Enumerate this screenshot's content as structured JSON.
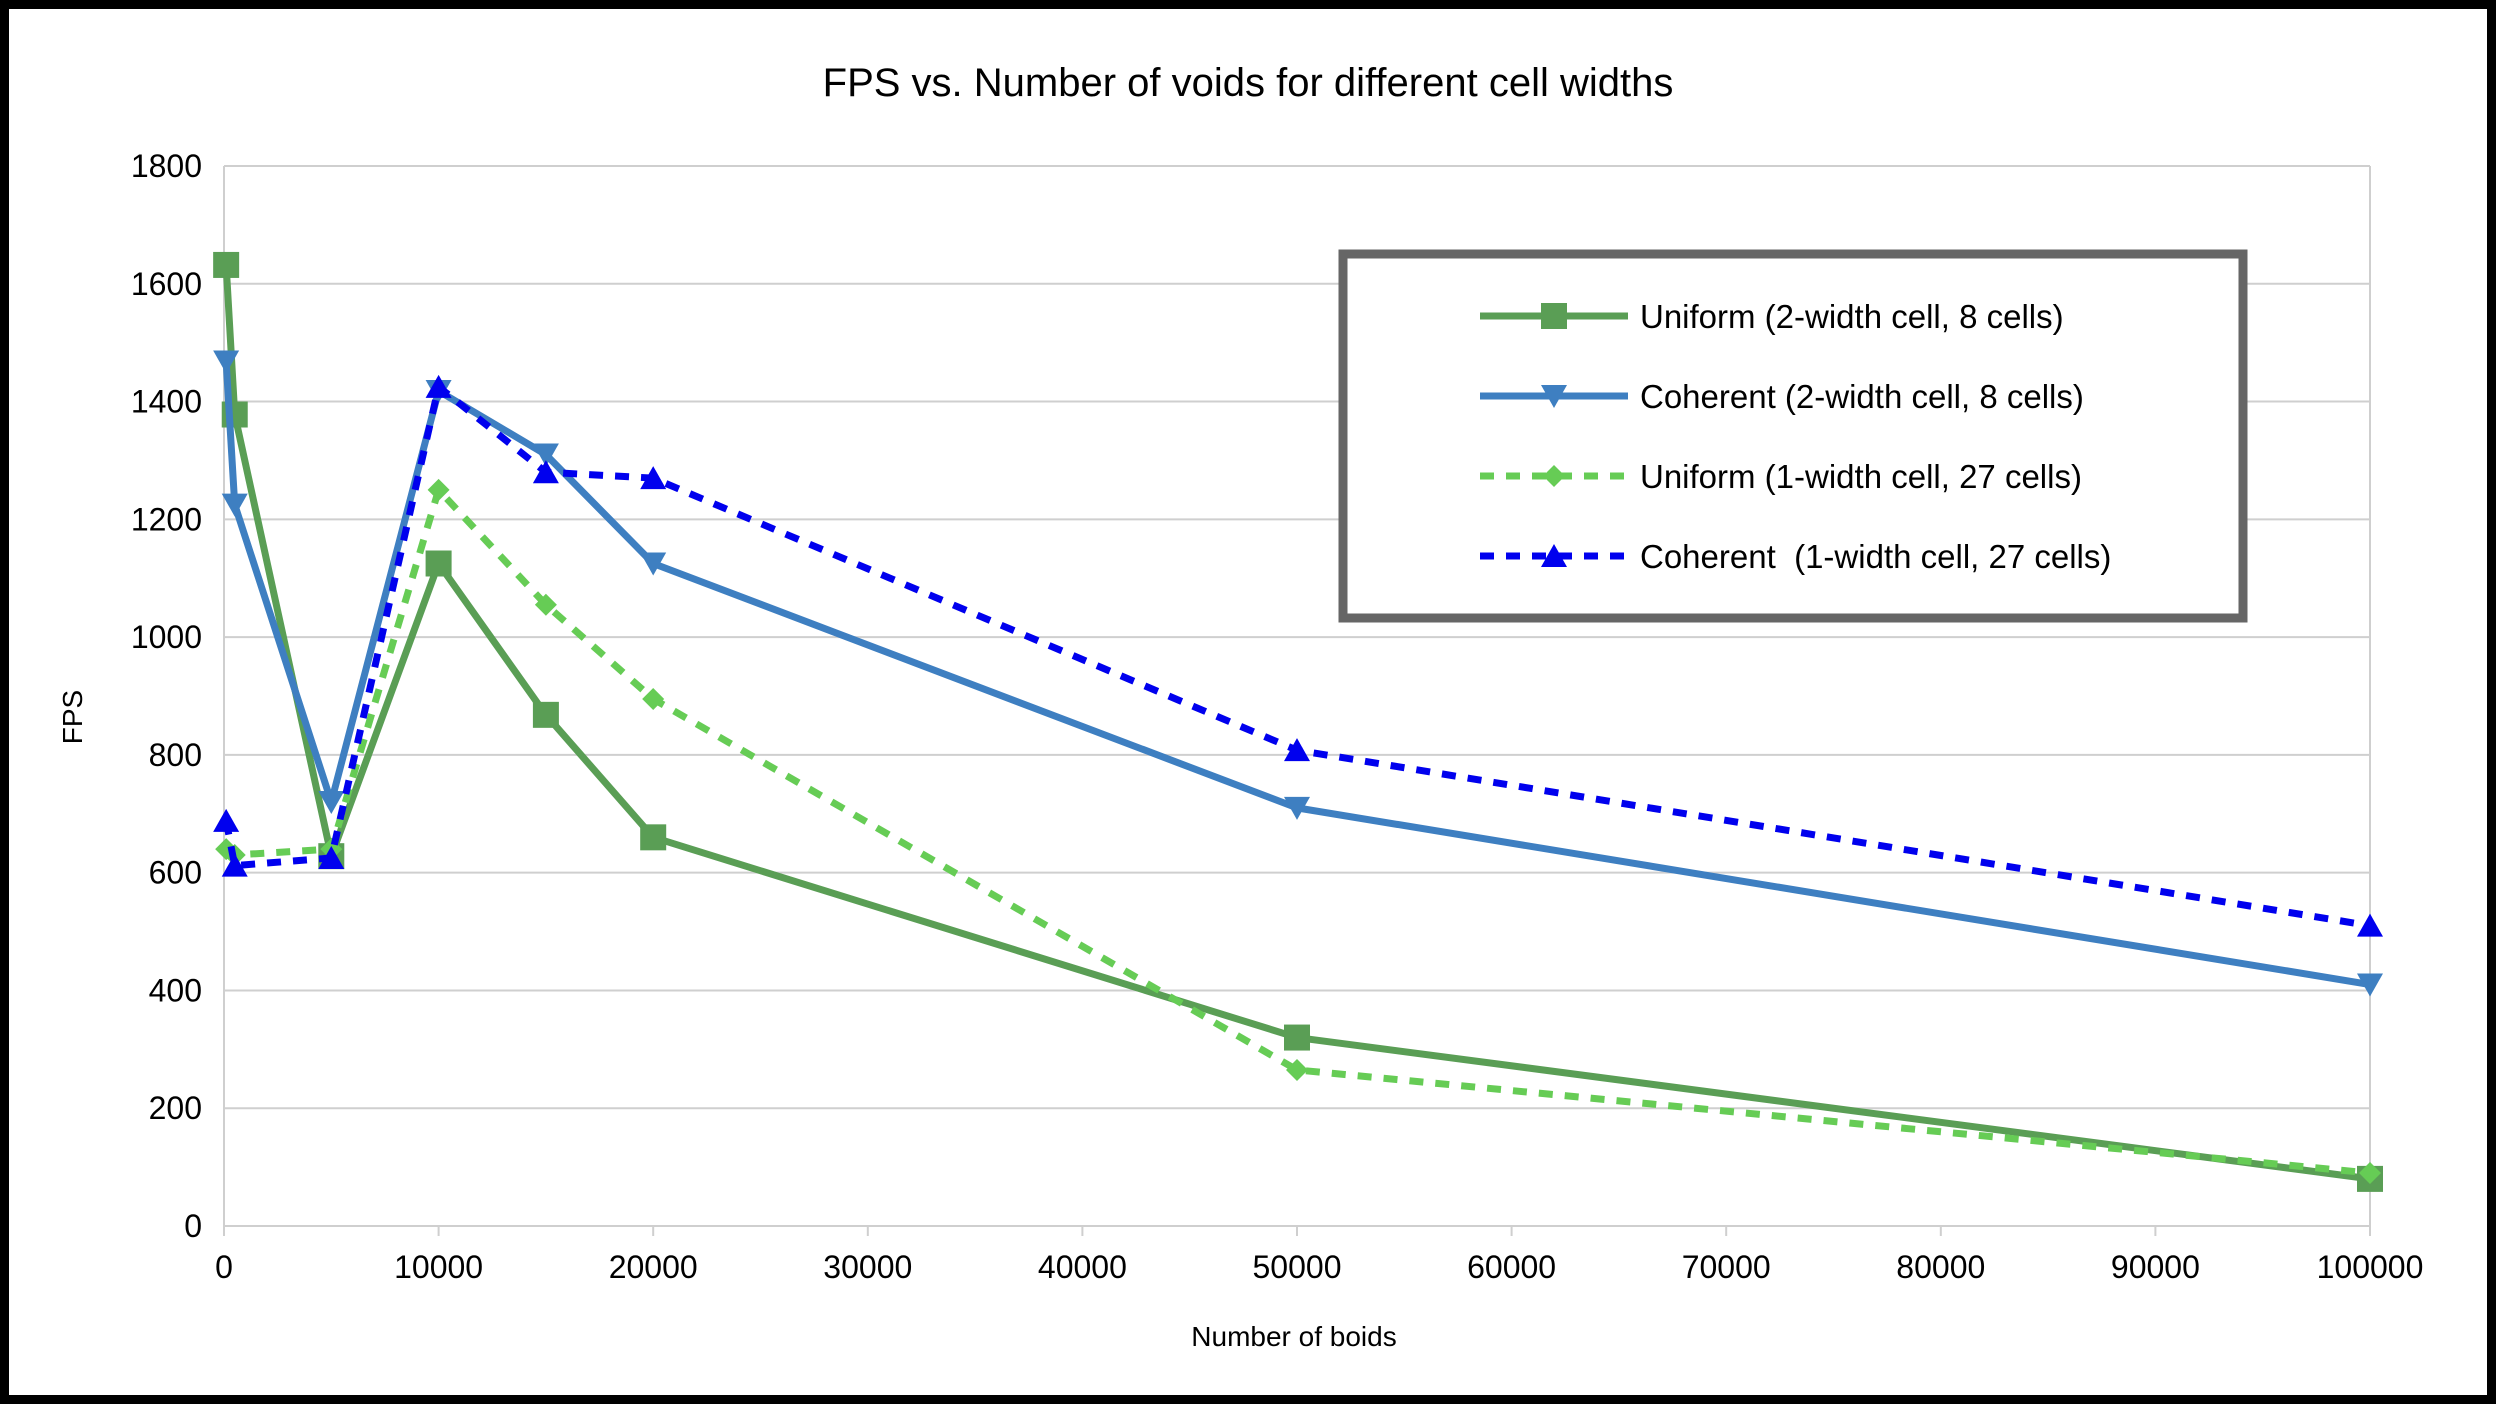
{
  "chart_data": {
    "type": "line",
    "title": "FPS vs. Number of voids for different cell widths",
    "xlabel": "Number of boids",
    "ylabel": "FPS",
    "xlim": [
      0,
      100000
    ],
    "ylim": [
      0,
      1800
    ],
    "x_ticks": [
      "0",
      "10000",
      "20000",
      "30000",
      "40000",
      "50000",
      "60000",
      "70000",
      "80000",
      "90000",
      "100000"
    ],
    "y_ticks": [
      "0",
      "200",
      "400",
      "600",
      "800",
      "1000",
      "1200",
      "1400",
      "1600",
      "1800"
    ],
    "grid": "horizontal",
    "legend_position": "top-right",
    "series": [
      {
        "name": "Uniform (2-width cell, 8 cells)",
        "color": "#5a9e55",
        "line_style": "solid",
        "marker": "square",
        "x": [
          100,
          500,
          5000,
          10000,
          15000,
          20000,
          50000,
          100000
        ],
        "y": [
          1632,
          1378,
          628,
          1125,
          868,
          660,
          320,
          80
        ]
      },
      {
        "name": "Coherent (2-width cell, 8 cells)",
        "color": "#3e7fc1",
        "line_style": "solid",
        "marker": "triangle-down",
        "x": [
          100,
          500,
          5000,
          10000,
          15000,
          20000,
          50000,
          100000
        ],
        "y": [
          1468,
          1225,
          720,
          1418,
          1310,
          1125,
          710,
          410
        ]
      },
      {
        "name": "Uniform (1-width cell, 27 cells)",
        "color": "#66cc55",
        "line_style": "dashed",
        "marker": "diamond",
        "x": [
          100,
          500,
          5000,
          10000,
          15000,
          20000,
          50000,
          100000
        ],
        "y": [
          640,
          630,
          640,
          1250,
          1055,
          895,
          265,
          90
        ]
      },
      {
        "name": "Coherent  (1-width cell, 27 cells)",
        "color": "#0000ee",
        "line_style": "dashed",
        "marker": "triangle-up",
        "x": [
          100,
          500,
          5000,
          10000,
          15000,
          20000,
          50000,
          100000
        ],
        "y": [
          688,
          612,
          625,
          1425,
          1280,
          1270,
          808,
          510
        ]
      }
    ]
  }
}
